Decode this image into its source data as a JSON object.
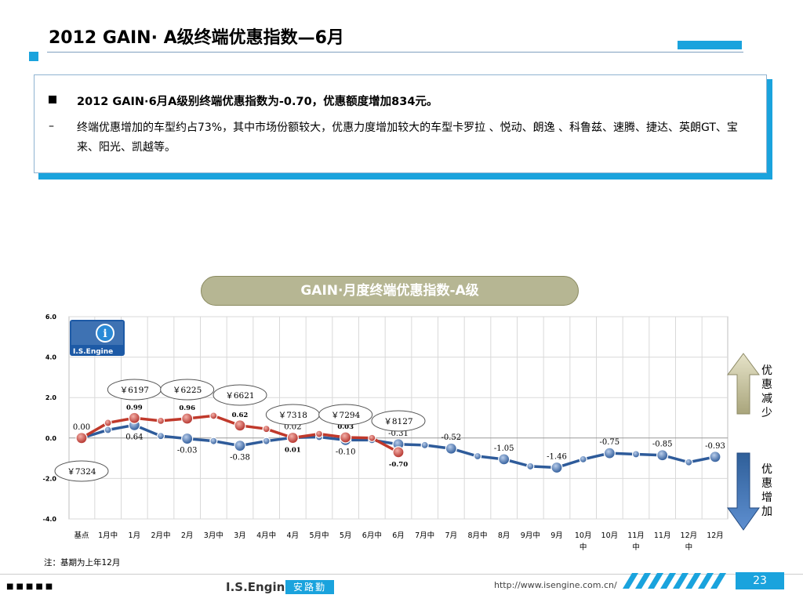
{
  "title": "2012 GAIN· A级终端优惠指数—6月",
  "bullets": {
    "main": "2012 GAIN·6月A级别终端优惠指数为-0.70，优惠额度增加834元。",
    "sub_mark": "–",
    "sub": "终端优惠增加的车型约占73%，其中市场份额较大，优惠力度增加较大的车型卡罗拉 、悦动、朗逸 、科鲁兹、速腾、捷达、英朗GT、宝来、阳光、凯越等。"
  },
  "logo": {
    "text": "I.S.Engine"
  },
  "arrows": {
    "up_label": "优惠减少",
    "down_label": "优惠增加"
  },
  "note": "注：基期为上年12月",
  "footer": {
    "brand": "I.S.Engine",
    "badge": "安路勤",
    "url": "http://www.isengine.com.cn/",
    "page": "23",
    "dots": "■■■■■"
  },
  "colors": {
    "accent": "#1aa3dd",
    "prev_year": "#c0392b",
    "this_year": "#2e5b9a",
    "title_pill": "#b6b693"
  },
  "chart_data": {
    "type": "line",
    "title": "GAIN·月度终端优惠指数-A级",
    "ylim": [
      -4.0,
      6.0
    ],
    "yticks": [
      "6.0",
      "4.0",
      "2.0",
      "0.0",
      "-2.0",
      "-4.0"
    ],
    "grid": true,
    "categories": [
      "基点",
      "1月中",
      "1月",
      "2月中",
      "2月",
      "3月中",
      "3月",
      "4月中",
      "4月",
      "5月中",
      "5月",
      "6月中",
      "6月",
      "7月中",
      "7月",
      "8月中",
      "8月",
      "9月中",
      "9月",
      "10月中",
      "10月",
      "11月中",
      "11月",
      "12月中",
      "12月"
    ],
    "series": [
      {
        "values": [
          0.0,
          0.75,
          0.99,
          0.85,
          0.96,
          1.1,
          0.62,
          0.45,
          0.01,
          0.2,
          0.03,
          0.0,
          -0.7,
          null,
          null,
          null,
          null,
          null,
          null,
          null,
          null,
          null,
          null,
          null,
          null
        ]
      },
      {
        "values": [
          0.0,
          0.4,
          0.64,
          0.1,
          -0.03,
          -0.15,
          -0.38,
          -0.15,
          0.02,
          0.05,
          -0.1,
          -0.1,
          -0.31,
          -0.35,
          -0.52,
          -0.9,
          -1.05,
          -1.4,
          -1.46,
          -1.05,
          -0.75,
          -0.8,
          -0.85,
          -1.2,
          -0.93
        ]
      }
    ],
    "value_labels": [
      {
        "text": "0.00",
        "x": 0,
        "y": 0.0,
        "series": 1,
        "pos": "above"
      },
      {
        "text": "0.99",
        "x": 2,
        "y": 0.99,
        "series": 0,
        "pos": "above"
      },
      {
        "text": "0.64",
        "x": 2,
        "y": 0.64,
        "series": 1,
        "pos": "below"
      },
      {
        "text": "0.96",
        "x": 4,
        "y": 0.96,
        "series": 0,
        "pos": "above"
      },
      {
        "text": "-0.03",
        "x": 4,
        "y": -0.03,
        "series": 1,
        "pos": "below"
      },
      {
        "text": "0.62",
        "x": 6,
        "y": 0.62,
        "series": 0,
        "pos": "above"
      },
      {
        "text": "-0.38",
        "x": 6,
        "y": -0.38,
        "series": 1,
        "pos": "below"
      },
      {
        "text": "0.02",
        "x": 8,
        "y": 0.02,
        "series": 1,
        "pos": "above"
      },
      {
        "text": "0.01",
        "x": 8,
        "y": 0.01,
        "series": 0,
        "pos": "below"
      },
      {
        "text": "0.03",
        "x": 10,
        "y": 0.03,
        "series": 0,
        "pos": "above"
      },
      {
        "text": "-0.10",
        "x": 10,
        "y": -0.1,
        "series": 1,
        "pos": "below"
      },
      {
        "text": "-0.31",
        "x": 12,
        "y": -0.31,
        "series": 1,
        "pos": "above"
      },
      {
        "text": "-0.70",
        "x": 12,
        "y": -0.7,
        "series": 0,
        "pos": "below"
      },
      {
        "text": "-0.52",
        "x": 14,
        "y": -0.52,
        "series": 1,
        "pos": "above"
      },
      {
        "text": "-1.05",
        "x": 16,
        "y": -1.05,
        "series": 1,
        "pos": "above"
      },
      {
        "text": "-1.46",
        "x": 18,
        "y": -1.46,
        "series": 1,
        "pos": "above"
      },
      {
        "text": "-0.75",
        "x": 20,
        "y": -0.75,
        "series": 1,
        "pos": "above"
      },
      {
        "text": "-0.85",
        "x": 22,
        "y": -0.85,
        "series": 1,
        "pos": "above"
      },
      {
        "text": "-0.93",
        "x": 24,
        "y": -0.93,
        "series": 1,
        "pos": "above"
      }
    ],
    "price_callouts": [
      {
        "text": "￥7324",
        "x": 0
      },
      {
        "text": "￥6197",
        "x": 2
      },
      {
        "text": "￥6225",
        "x": 4
      },
      {
        "text": "￥6621",
        "x": 6
      },
      {
        "text": "￥7318",
        "x": 8
      },
      {
        "text": "￥7294",
        "x": 10
      },
      {
        "text": "￥8127",
        "x": 12
      }
    ]
  }
}
